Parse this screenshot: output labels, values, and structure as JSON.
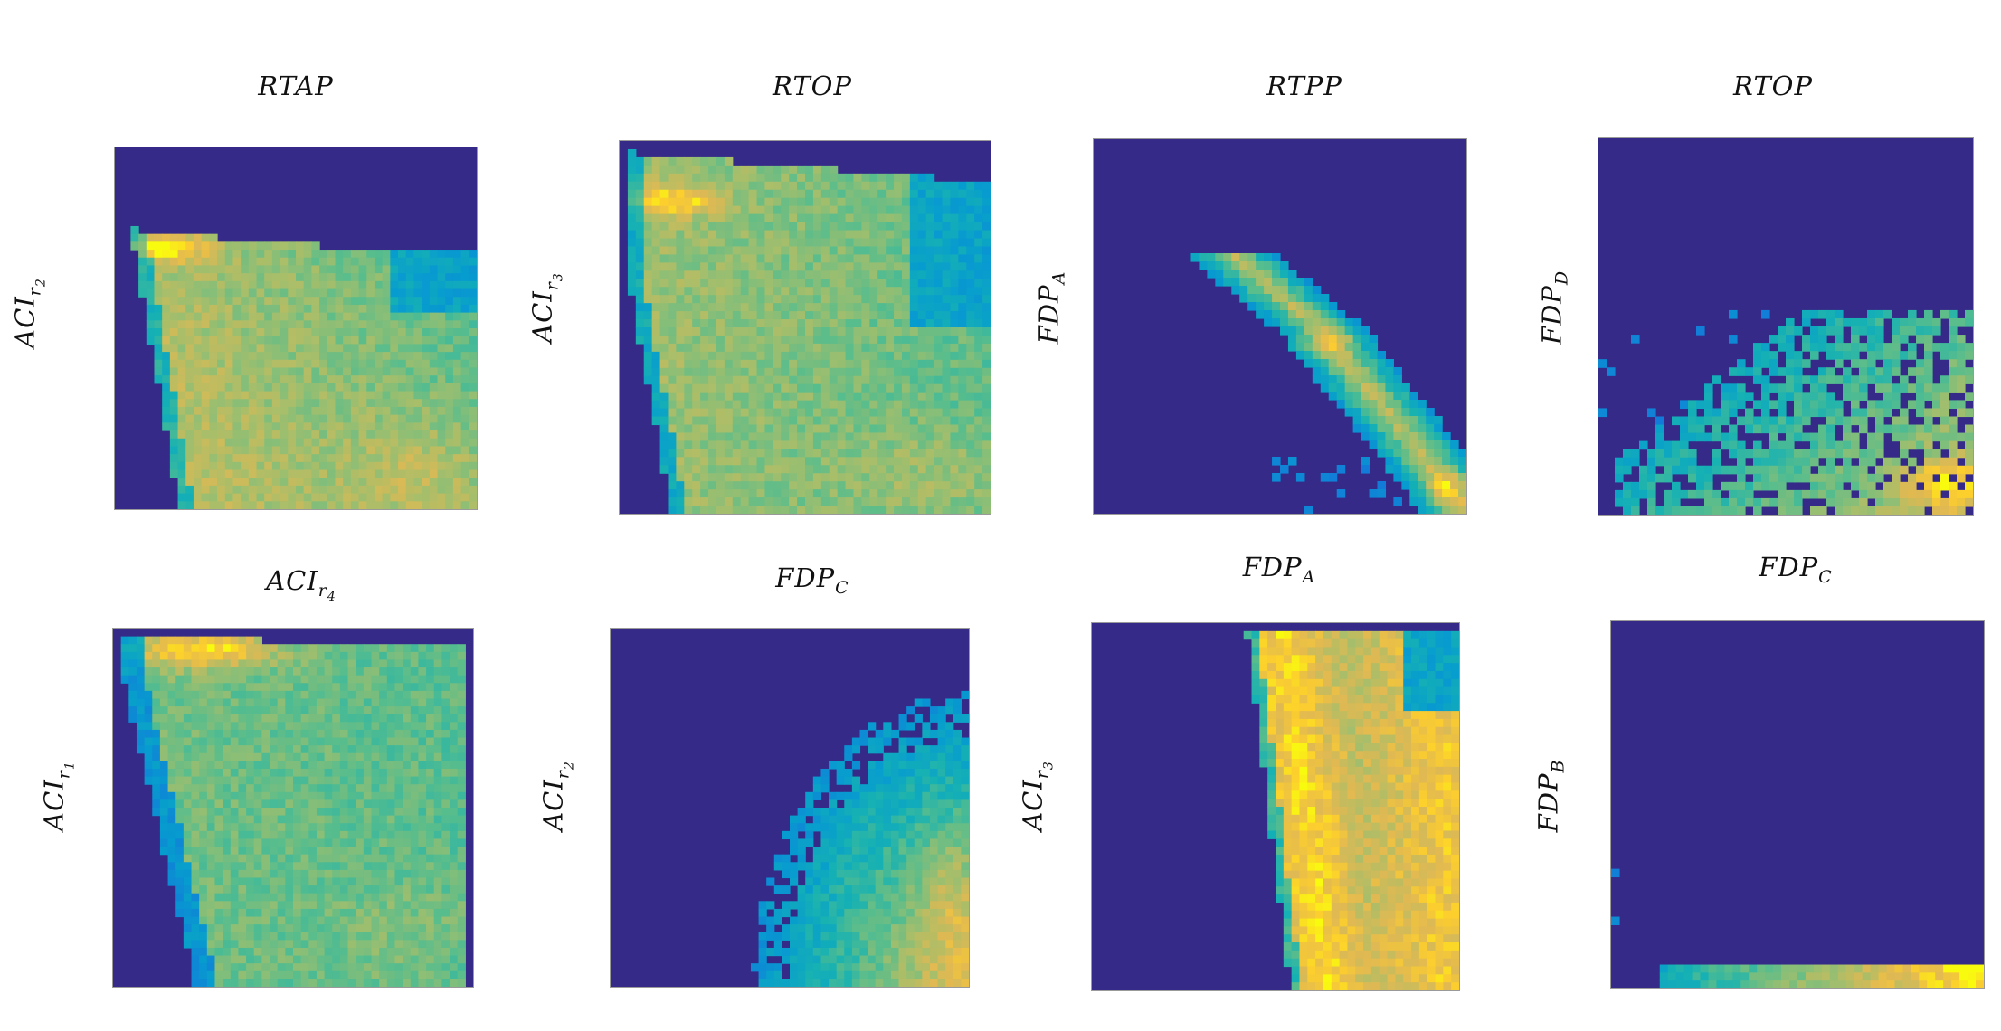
{
  "chart_data": [
    {
      "type": "heatmap",
      "title": "RTAP",
      "ylabel": "ACI",
      "ylabel_sub": "r",
      "ylabel_subsub": "2",
      "title_sub": "",
      "title_subsub": "",
      "pattern": "fan",
      "colors": {
        "background": "#352a87",
        "low": "#0f5cdd",
        "mid": "#1aafa7",
        "high": "#f8fa0d"
      }
    },
    {
      "type": "heatmap",
      "title": "RTOP",
      "ylabel": "ACI",
      "ylabel_sub": "r",
      "ylabel_subsub": "3",
      "title_sub": "",
      "title_subsub": "",
      "pattern": "fan2"
    },
    {
      "type": "heatmap",
      "title": "RTPP",
      "ylabel": "FDP",
      "ylabel_sub": "A",
      "ylabel_subsub": "",
      "title_sub": "",
      "title_subsub": "",
      "pattern": "curve"
    },
    {
      "type": "heatmap",
      "title": "RTOP",
      "ylabel": "FDP",
      "ylabel_sub": "D",
      "ylabel_subsub": "",
      "title_sub": "",
      "title_subsub": "",
      "pattern": "cloud"
    },
    {
      "type": "heatmap",
      "title": "ACI",
      "ylabel": "ACI",
      "ylabel_sub": "r",
      "ylabel_subsub": "1",
      "title_sub": "r",
      "title_subsub": "4",
      "pattern": "fan3"
    },
    {
      "type": "heatmap",
      "title": "FDP",
      "ylabel": "ACI",
      "ylabel_sub": "r",
      "ylabel_subsub": "2",
      "title_sub": "C",
      "title_subsub": "",
      "pattern": "quarter"
    },
    {
      "type": "heatmap",
      "title": "FDP",
      "ylabel": "ACI",
      "ylabel_sub": "r",
      "ylabel_subsub": "3",
      "title_sub": "A",
      "title_subsub": "",
      "pattern": "band"
    },
    {
      "type": "heatmap",
      "title": "FDP",
      "ylabel": "FDP",
      "ylabel_sub": "B",
      "ylabel_subsub": "",
      "title_sub": "C",
      "title_subsub": "",
      "pattern": "strip"
    }
  ]
}
